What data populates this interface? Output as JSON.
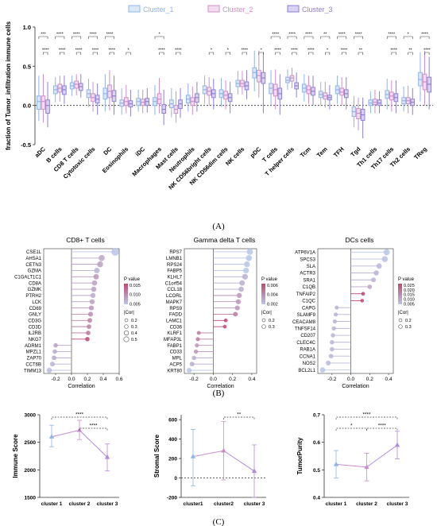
{
  "figure": {
    "panel_a_label": "(A)",
    "panel_b_label": "(B)",
    "panel_c_label": "(C)"
  },
  "colors": {
    "cluster1": "#8fb4e8",
    "cluster2": "#d08fc7",
    "cluster3": "#8e7fd6",
    "c1_fill": "#dce8f8",
    "c2_fill": "#f2dcef",
    "c3_fill": "#d9d2f3",
    "lollipop_low": "#b9c6e8",
    "lollipop_high": "#c04870",
    "trend1": "#8fb4e8",
    "trend2": "#c98dd0",
    "trend3": "#b08ae0"
  },
  "chart_data": [
    {
      "type": "box",
      "panel": "A",
      "ylabel": "fraction of Tumor_infiltration immune cells",
      "ylim": [
        -0.5,
        1.0
      ],
      "yticks": [
        "-0.5",
        "0.0",
        "0.5",
        "1.0"
      ],
      "legend_position": "top",
      "series": [
        {
          "name": "Cluster_1"
        },
        {
          "name": "Cluster_2"
        },
        {
          "name": "Cluster_3"
        }
      ],
      "categories": [
        "aDC",
        "B cells",
        "CD8 T cells",
        "Cytotoxic cells",
        "DC",
        "Eosinophils",
        "iDC",
        "Macrophages",
        "Mast cells",
        "Neutrophils",
        "NK CD56bright cells",
        "NK CD56dim cells",
        "NK cells",
        "pDC",
        "T cells",
        "T helper cells",
        "Tcm",
        "Tem",
        "TFH",
        "Tgd",
        "Th1 cells",
        "Th17 cells",
        "Th2 cells",
        "TReg"
      ],
      "medians": [
        [
          0.05,
          0.05,
          0.0
        ],
        [
          0.2,
          0.22,
          0.2
        ],
        [
          0.25,
          0.27,
          0.24
        ],
        [
          0.15,
          0.1,
          0.08
        ],
        [
          0.15,
          0.18,
          0.12
        ],
        [
          0.03,
          0.05,
          0.02
        ],
        [
          0.05,
          0.04,
          0.05
        ],
        [
          0.05,
          0.08,
          -0.05
        ],
        [
          0.02,
          -0.05,
          0.02
        ],
        [
          0.08,
          0.05,
          0.1
        ],
        [
          0.2,
          0.18,
          0.15
        ],
        [
          0.15,
          0.13,
          0.1
        ],
        [
          0.28,
          0.28,
          0.25
        ],
        [
          0.42,
          0.38,
          0.35
        ],
        [
          0.22,
          0.2,
          0.15
        ],
        [
          0.32,
          0.35,
          0.25
        ],
        [
          0.22,
          0.2,
          0.18
        ],
        [
          0.14,
          0.12,
          0.1
        ],
        [
          0.2,
          0.17,
          0.15
        ],
        [
          -0.08,
          -0.1,
          -0.12
        ],
        [
          0.03,
          0.04,
          0.03
        ],
        [
          0.14,
          0.12,
          0.1
        ],
        [
          0.06,
          0.06,
          0.04
        ],
        [
          0.33,
          0.3,
          0.27
        ]
      ],
      "q1": [
        [
          -0.05,
          -0.05,
          -0.1
        ],
        [
          0.15,
          0.17,
          0.14
        ],
        [
          0.21,
          0.22,
          0.19
        ],
        [
          0.1,
          0.05,
          0.03
        ],
        [
          0.08,
          0.1,
          0.05
        ],
        [
          -0.01,
          0.0,
          -0.02
        ],
        [
          0.0,
          0.0,
          0.0
        ],
        [
          0.0,
          0.02,
          -0.1
        ],
        [
          -0.03,
          -0.1,
          -0.04
        ],
        [
          0.03,
          0.0,
          0.04
        ],
        [
          0.15,
          0.13,
          0.1
        ],
        [
          0.1,
          0.08,
          0.05
        ],
        [
          0.24,
          0.24,
          0.2
        ],
        [
          0.35,
          0.3,
          0.28
        ],
        [
          0.15,
          0.12,
          0.08
        ],
        [
          0.29,
          0.31,
          0.21
        ],
        [
          0.17,
          0.15,
          0.13
        ],
        [
          0.1,
          0.08,
          0.07
        ],
        [
          0.15,
          0.13,
          0.1
        ],
        [
          -0.14,
          -0.17,
          -0.19
        ],
        [
          0.0,
          0.01,
          0.0
        ],
        [
          0.09,
          0.07,
          0.05
        ],
        [
          0.02,
          0.02,
          0.0
        ],
        [
          0.25,
          0.2,
          0.17
        ]
      ],
      "q3": [
        [
          0.12,
          0.12,
          0.07
        ],
        [
          0.25,
          0.27,
          0.25
        ],
        [
          0.29,
          0.31,
          0.28
        ],
        [
          0.2,
          0.15,
          0.13
        ],
        [
          0.22,
          0.26,
          0.19
        ],
        [
          0.07,
          0.1,
          0.06
        ],
        [
          0.09,
          0.08,
          0.09
        ],
        [
          0.1,
          0.15,
          0.01
        ],
        [
          0.07,
          0.0,
          0.07
        ],
        [
          0.13,
          0.1,
          0.15
        ],
        [
          0.25,
          0.23,
          0.2
        ],
        [
          0.2,
          0.18,
          0.15
        ],
        [
          0.32,
          0.32,
          0.3
        ],
        [
          0.48,
          0.45,
          0.42
        ],
        [
          0.28,
          0.27,
          0.22
        ],
        [
          0.36,
          0.38,
          0.29
        ],
        [
          0.27,
          0.25,
          0.23
        ],
        [
          0.18,
          0.16,
          0.13
        ],
        [
          0.25,
          0.22,
          0.2
        ],
        [
          -0.02,
          -0.04,
          -0.05
        ],
        [
          0.07,
          0.08,
          0.07
        ],
        [
          0.19,
          0.17,
          0.15
        ],
        [
          0.1,
          0.1,
          0.08
        ],
        [
          0.42,
          0.4,
          0.36
        ]
      ],
      "whisker_low": [
        [
          -0.2,
          -0.22,
          -0.28
        ],
        [
          0.04,
          0.05,
          0.02
        ],
        [
          0.12,
          0.13,
          0.1
        ],
        [
          -0.02,
          -0.08,
          -0.12
        ],
        [
          -0.08,
          -0.06,
          -0.12
        ],
        [
          -0.12,
          -0.1,
          -0.14
        ],
        [
          -0.08,
          -0.1,
          -0.09
        ],
        [
          -0.12,
          -0.1,
          -0.25
        ],
        [
          -0.15,
          -0.22,
          -0.16
        ],
        [
          -0.08,
          -0.12,
          -0.08
        ],
        [
          0.02,
          0.0,
          -0.05
        ],
        [
          -0.02,
          -0.05,
          -0.1
        ],
        [
          0.14,
          0.14,
          0.08
        ],
        [
          0.18,
          0.1,
          -0.1
        ],
        [
          0.0,
          -0.05,
          -0.12
        ],
        [
          0.2,
          0.22,
          0.1
        ],
        [
          0.05,
          0.02,
          0.0
        ],
        [
          0.0,
          -0.03,
          -0.05
        ],
        [
          0.02,
          0.0,
          -0.05
        ],
        [
          -0.28,
          -0.32,
          -0.42
        ],
        [
          -0.1,
          -0.1,
          -0.1
        ],
        [
          -0.05,
          -0.08,
          -0.1
        ],
        [
          -0.08,
          -0.1,
          -0.12
        ],
        [
          0.05,
          0.0,
          -0.05
        ]
      ],
      "whisker_high": [
        [
          0.38,
          0.4,
          0.3
        ],
        [
          0.36,
          0.38,
          0.38
        ],
        [
          0.38,
          0.4,
          0.4
        ],
        [
          0.34,
          0.3,
          0.28
        ],
        [
          0.4,
          0.45,
          0.38
        ],
        [
          0.22,
          0.26,
          0.2
        ],
        [
          0.2,
          0.2,
          0.22
        ],
        [
          0.26,
          0.35,
          0.2
        ],
        [
          0.22,
          0.18,
          0.22
        ],
        [
          0.28,
          0.24,
          0.3
        ],
        [
          0.38,
          0.36,
          0.34
        ],
        [
          0.35,
          0.32,
          0.3
        ],
        [
          0.44,
          0.44,
          0.45
        ],
        [
          0.7,
          0.7,
          0.68
        ],
        [
          0.45,
          0.46,
          0.4
        ],
        [
          0.46,
          0.48,
          0.42
        ],
        [
          0.4,
          0.38,
          0.38
        ],
        [
          0.3,
          0.3,
          0.26
        ],
        [
          0.38,
          0.36,
          0.36
        ],
        [
          0.12,
          0.1,
          0.1
        ],
        [
          0.18,
          0.2,
          0.18
        ],
        [
          0.34,
          0.32,
          0.32
        ],
        [
          0.24,
          0.25,
          0.22
        ],
        [
          0.68,
          0.7,
          0.62
        ]
      ],
      "sig_top_pairs": [
        "1-2",
        "1-3",
        "1-2",
        "1-3",
        "1-2",
        "",
        "",
        "1-2",
        "",
        "",
        "",
        "",
        "",
        "",
        "",
        "",
        "",
        "",
        "",
        "1-3",
        "",
        "",
        "",
        "1-2"
      ],
      "significance": [
        [
          "***",
          "****"
        ],
        [
          "****",
          "****"
        ],
        [
          "****",
          "****"
        ],
        [
          "****",
          "****"
        ],
        [
          "****",
          "****"
        ],
        [
          "",
          "*"
        ],
        [
          "",
          ""
        ],
        [
          "*",
          "****"
        ],
        [
          "",
          "****"
        ],
        [
          "",
          ""
        ],
        [
          "",
          "*"
        ],
        [
          "",
          "*"
        ],
        [
          "",
          "****"
        ],
        [
          "",
          "*"
        ],
        [
          "****",
          "****"
        ],
        [
          "****",
          "****"
        ],
        [
          "****",
          "****"
        ],
        [
          "**",
          "*"
        ],
        [
          "****",
          "****"
        ],
        [
          "****",
          "**"
        ],
        [
          "",
          ""
        ],
        [
          "****",
          "****"
        ],
        [
          "*",
          "**"
        ],
        [
          "****",
          "****"
        ]
      ]
    },
    {
      "type": "lollipop",
      "panel": "B",
      "title": "CD8+ T cells",
      "xlabel": "Correlation",
      "xlim": [
        -0.35,
        0.6
      ],
      "xticks": [
        "-0.2",
        "0.0",
        "0.2",
        "0.4",
        "0.6"
      ],
      "legend_pvalue_title": "P value",
      "legend_pvalue_ticks": [
        "0.015",
        "0.010",
        "0.005"
      ],
      "legend_cor_title": "|Cor|",
      "legend_cor_ticks": [
        "0.2",
        "0.3",
        "0.4",
        "0.5"
      ],
      "genes": [
        "CSE1L",
        "AHSA1",
        "CETN3",
        "GZMA",
        "C1GALT1C1",
        "CD8A",
        "GZMK",
        "PTRH2",
        "LCK",
        "CD69",
        "GNLY",
        "CD3G",
        "CD3D",
        "IL2RB",
        "NKG7",
        "ADRM1",
        "MPZL1",
        "ZAP70",
        "CCT6B",
        "TIMM13"
      ],
      "correlation": [
        0.55,
        0.38,
        0.36,
        0.32,
        0.31,
        0.29,
        0.28,
        0.27,
        0.26,
        0.25,
        0.24,
        0.23,
        0.22,
        0.21,
        0.2,
        -0.2,
        -0.21,
        -0.22,
        -0.24,
        -0.28
      ],
      "pvalue": [
        0.002,
        0.005,
        0.006,
        0.004,
        0.007,
        0.006,
        0.006,
        0.005,
        0.006,
        0.007,
        0.008,
        0.009,
        0.009,
        0.01,
        0.015,
        0.006,
        0.005,
        0.005,
        0.004,
        0.003
      ]
    },
    {
      "type": "lollipop",
      "panel": "B",
      "title": "Gamma delta T cells",
      "xlabel": "Correlation",
      "xlim": [
        -0.3,
        0.45
      ],
      "xticks": [
        "-0.2",
        "0.0",
        "0.2",
        "0.4"
      ],
      "legend_pvalue_title": "P value",
      "legend_pvalue_ticks": [
        "0.006",
        "0.004",
        "0.002"
      ],
      "legend_cor_title": "|Cor|",
      "legend_cor_ticks": [
        "0.2",
        "0.3"
      ],
      "genes": [
        "RPS7",
        "LMNB1",
        "RPS24",
        "FABP5",
        "KLHL7",
        "C1orf54",
        "CCL18",
        "LCORL",
        "MAPK7",
        "RPS9",
        "FADD",
        "LAMC1",
        "CD36",
        "KLRF1",
        "MFAP3L",
        "FABP1",
        "CD33",
        "MPL",
        "ACP5",
        "KRT80"
      ],
      "correlation": [
        0.38,
        0.37,
        0.35,
        0.34,
        0.33,
        0.3,
        0.29,
        0.27,
        0.26,
        0.25,
        0.23,
        0.13,
        0.12,
        -0.15,
        -0.16,
        -0.17,
        -0.18,
        -0.2,
        -0.22,
        -0.25
      ],
      "pvalue": [
        0.001,
        0.001,
        0.001,
        0.001,
        0.002,
        0.002,
        0.002,
        0.003,
        0.003,
        0.003,
        0.004,
        0.006,
        0.006,
        0.004,
        0.004,
        0.003,
        0.003,
        0.002,
        0.002,
        0.001
      ]
    },
    {
      "type": "lollipop",
      "panel": "B",
      "title": "DCs cells",
      "xlabel": "Correlation",
      "xlim": [
        -0.35,
        0.45
      ],
      "xticks": [
        "-0.2",
        "0.0",
        "0.2",
        "0.4"
      ],
      "legend_pvalue_title": "P value",
      "legend_pvalue_ticks": [
        "0.025",
        "0.020",
        "0.015",
        "0.010",
        "0.005"
      ],
      "legend_cor_title": "|Cor|",
      "legend_cor_ticks": [
        "0.2",
        "0.3"
      ],
      "genes": [
        "ATP6V1A",
        "SPCS3",
        "SLA",
        "ACTR3",
        "SRA1",
        "C1QB",
        "TNFAIP2",
        "C1QC",
        "CAPG",
        "SLAMF9",
        "CEACAM8",
        "TNFSF14",
        "CD207",
        "CLEC4C",
        "RAB1A",
        "CCNA1",
        "NOS2",
        "BCL2L1"
      ],
      "correlation": [
        0.38,
        0.36,
        0.3,
        0.27,
        0.24,
        0.2,
        0.13,
        0.12,
        -0.15,
        -0.16,
        -0.17,
        -0.18,
        -0.19,
        -0.2,
        -0.2,
        -0.21,
        -0.24,
        -0.3
      ],
      "pvalue": [
        0.002,
        0.003,
        0.005,
        0.006,
        0.006,
        0.008,
        0.025,
        0.025,
        0.006,
        0.006,
        0.006,
        0.006,
        0.005,
        0.005,
        0.005,
        0.005,
        0.004,
        0.002
      ]
    },
    {
      "type": "line",
      "panel": "C",
      "ylabel": "Immune Score",
      "categories": [
        "cluster 1",
        "cluster 2",
        "cluster 3"
      ],
      "values": [
        2600,
        2720,
        2230
      ],
      "err_low": [
        2420,
        2550,
        1980
      ],
      "err_high": [
        2810,
        2900,
        2470
      ],
      "ylim": [
        1500,
        3000
      ],
      "yticks": [
        "1500",
        "2000",
        "2500",
        "3000"
      ],
      "sig": [
        {
          "pair": "1-3",
          "label": "****"
        },
        {
          "pair": "2-3",
          "label": "****"
        }
      ]
    },
    {
      "type": "line",
      "panel": "C",
      "ylabel": "Stromal Score",
      "categories": [
        "cluster1",
        "cluster2",
        "cluster 3"
      ],
      "values": [
        220,
        280,
        70
      ],
      "err_low": [
        -80,
        -20,
        -200
      ],
      "err_high": [
        500,
        580,
        340
      ],
      "ylim": [
        -200,
        650
      ],
      "yticks": [
        "-200",
        "0",
        "200",
        "400",
        "600"
      ],
      "sig": [
        {
          "pair": "2-3",
          "label": "**"
        }
      ]
    },
    {
      "type": "line",
      "panel": "C",
      "ylabel": "TumorPurity",
      "categories": [
        "cluster 1",
        "cluster 2",
        "cluster 3"
      ],
      "values": [
        0.52,
        0.51,
        0.59
      ],
      "err_low": [
        0.47,
        0.46,
        0.54
      ],
      "err_high": [
        0.57,
        0.56,
        0.64
      ],
      "ylim": [
        0.4,
        0.7
      ],
      "yticks": [
        "0.4",
        "0.5",
        "0.6",
        "0.7"
      ],
      "sig": [
        {
          "pair": "1-3",
          "label": "****"
        },
        {
          "pair": "1-2",
          "label": "*"
        },
        {
          "pair": "2-3",
          "label": "****"
        }
      ]
    }
  ]
}
